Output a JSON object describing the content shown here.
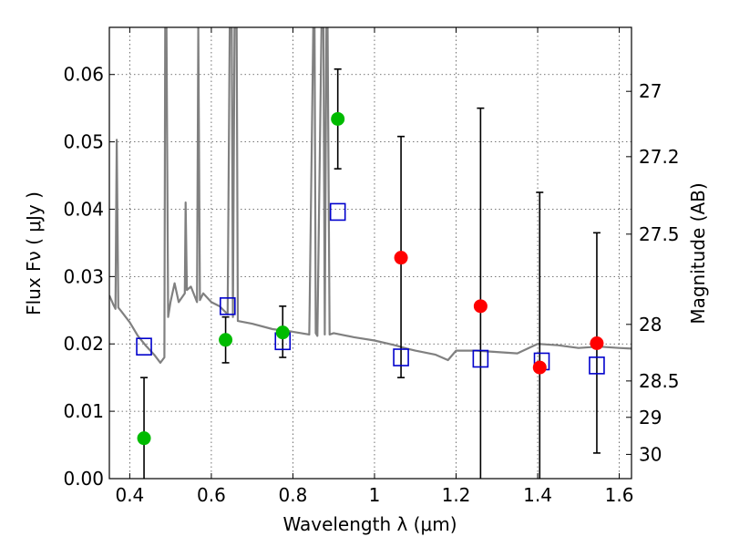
{
  "chart_data": {
    "type": "scatter",
    "title": "",
    "xlabel": "Wavelength  λ (μm)",
    "ylabel": "Flux  Fν  ( μJy )",
    "y2label": "Magnitude (AB)",
    "xlim": [
      0.35,
      1.63
    ],
    "ylim": [
      0.0,
      0.067
    ],
    "grid": true,
    "x_ticks": [
      0.4,
      0.6,
      0.8,
      1.0,
      1.2,
      1.4,
      1.6
    ],
    "x_tick_labels": [
      "0.4",
      "0.6",
      "0.8",
      "1",
      "1.2",
      "1.4",
      "1.6"
    ],
    "y_ticks": [
      0.0,
      0.01,
      0.02,
      0.03,
      0.04,
      0.05,
      0.06
    ],
    "y_tick_labels": [
      "0.00",
      "0.01",
      "0.02",
      "0.03",
      "0.04",
      "0.05",
      "0.06"
    ],
    "y2_ticks": [
      {
        "label": "27",
        "flux": 0.0575
      },
      {
        "label": "27.2",
        "flux": 0.0478
      },
      {
        "label": "27.5",
        "flux": 0.0363
      },
      {
        "label": "28",
        "flux": 0.0229
      },
      {
        "label": "28.5",
        "flux": 0.0145
      },
      {
        "label": "29",
        "flux": 0.0091
      },
      {
        "label": "30",
        "flux": 0.0036
      }
    ],
    "colors": {
      "detections": "#00bb00",
      "upper_limits": "#ff0000",
      "model": "#0000cc",
      "spectrum": "#808080",
      "errorbar": "#000000"
    },
    "series": [
      {
        "kind": "detections",
        "points": [
          {
            "x": 0.435,
            "y": 0.006,
            "ylo": 0.0,
            "yhi": 0.015
          },
          {
            "x": 0.635,
            "y": 0.0206,
            "ylo": 0.0172,
            "yhi": 0.024
          },
          {
            "x": 0.775,
            "y": 0.0217,
            "ylo": 0.018,
            "yhi": 0.0256
          },
          {
            "x": 0.91,
            "y": 0.0534,
            "ylo": 0.046,
            "yhi": 0.0608
          }
        ]
      },
      {
        "kind": "upper_limits",
        "points": [
          {
            "x": 1.065,
            "y": 0.0328,
            "ylo": 0.015,
            "yhi": 0.0508
          },
          {
            "x": 1.26,
            "y": 0.0256,
            "ylo": 0.0,
            "yhi": 0.055
          },
          {
            "x": 1.405,
            "y": 0.0165,
            "ylo": 0.0,
            "yhi": 0.0425
          },
          {
            "x": 1.545,
            "y": 0.0201,
            "ylo": 0.0038,
            "yhi": 0.0365
          }
        ]
      },
      {
        "kind": "model",
        "points": [
          {
            "x": 0.435,
            "y": 0.0196
          },
          {
            "x": 0.64,
            "y": 0.0256
          },
          {
            "x": 0.775,
            "y": 0.0204
          },
          {
            "x": 0.91,
            "y": 0.0396
          },
          {
            "x": 1.065,
            "y": 0.018
          },
          {
            "x": 1.26,
            "y": 0.0178
          },
          {
            "x": 1.41,
            "y": 0.0174
          },
          {
            "x": 1.545,
            "y": 0.0168
          }
        ]
      },
      {
        "kind": "spectrum",
        "x": [
          0.35,
          0.36,
          0.365,
          0.368,
          0.372,
          0.38,
          0.4,
          0.42,
          0.44,
          0.46,
          0.475,
          0.485,
          0.487,
          0.49,
          0.494,
          0.5,
          0.51,
          0.52,
          0.535,
          0.537,
          0.54,
          0.55,
          0.565,
          0.568,
          0.572,
          0.58,
          0.6,
          0.62,
          0.64,
          0.645,
          0.65,
          0.653,
          0.657,
          0.662,
          0.665,
          0.7,
          0.75,
          0.8,
          0.84,
          0.85,
          0.853,
          0.856,
          0.86,
          0.87,
          0.875,
          0.878,
          0.882,
          0.885,
          0.89,
          0.9,
          0.95,
          1.0,
          1.05,
          1.08,
          1.1,
          1.15,
          1.18,
          1.2,
          1.25,
          1.3,
          1.35,
          1.4,
          1.45,
          1.5,
          1.55,
          1.6,
          1.63
        ],
        "y": [
          0.0272,
          0.0258,
          0.0252,
          0.0503,
          0.0254,
          0.0248,
          0.0232,
          0.0212,
          0.0197,
          0.0184,
          0.0172,
          0.018,
          0.067,
          0.067,
          0.024,
          0.0262,
          0.029,
          0.0262,
          0.0275,
          0.041,
          0.028,
          0.0285,
          0.0262,
          0.067,
          0.0265,
          0.0275,
          0.0262,
          0.0256,
          0.0244,
          0.067,
          0.067,
          0.024,
          0.067,
          0.067,
          0.0234,
          0.023,
          0.0222,
          0.0218,
          0.0214,
          0.067,
          0.067,
          0.0216,
          0.0212,
          0.067,
          0.067,
          0.0214,
          0.067,
          0.067,
          0.0214,
          0.0216,
          0.021,
          0.0205,
          0.0198,
          0.0193,
          0.019,
          0.0184,
          0.0176,
          0.019,
          0.019,
          0.0188,
          0.0186,
          0.02,
          0.0198,
          0.0194,
          0.0196,
          0.0194,
          0.0193
        ]
      }
    ]
  }
}
